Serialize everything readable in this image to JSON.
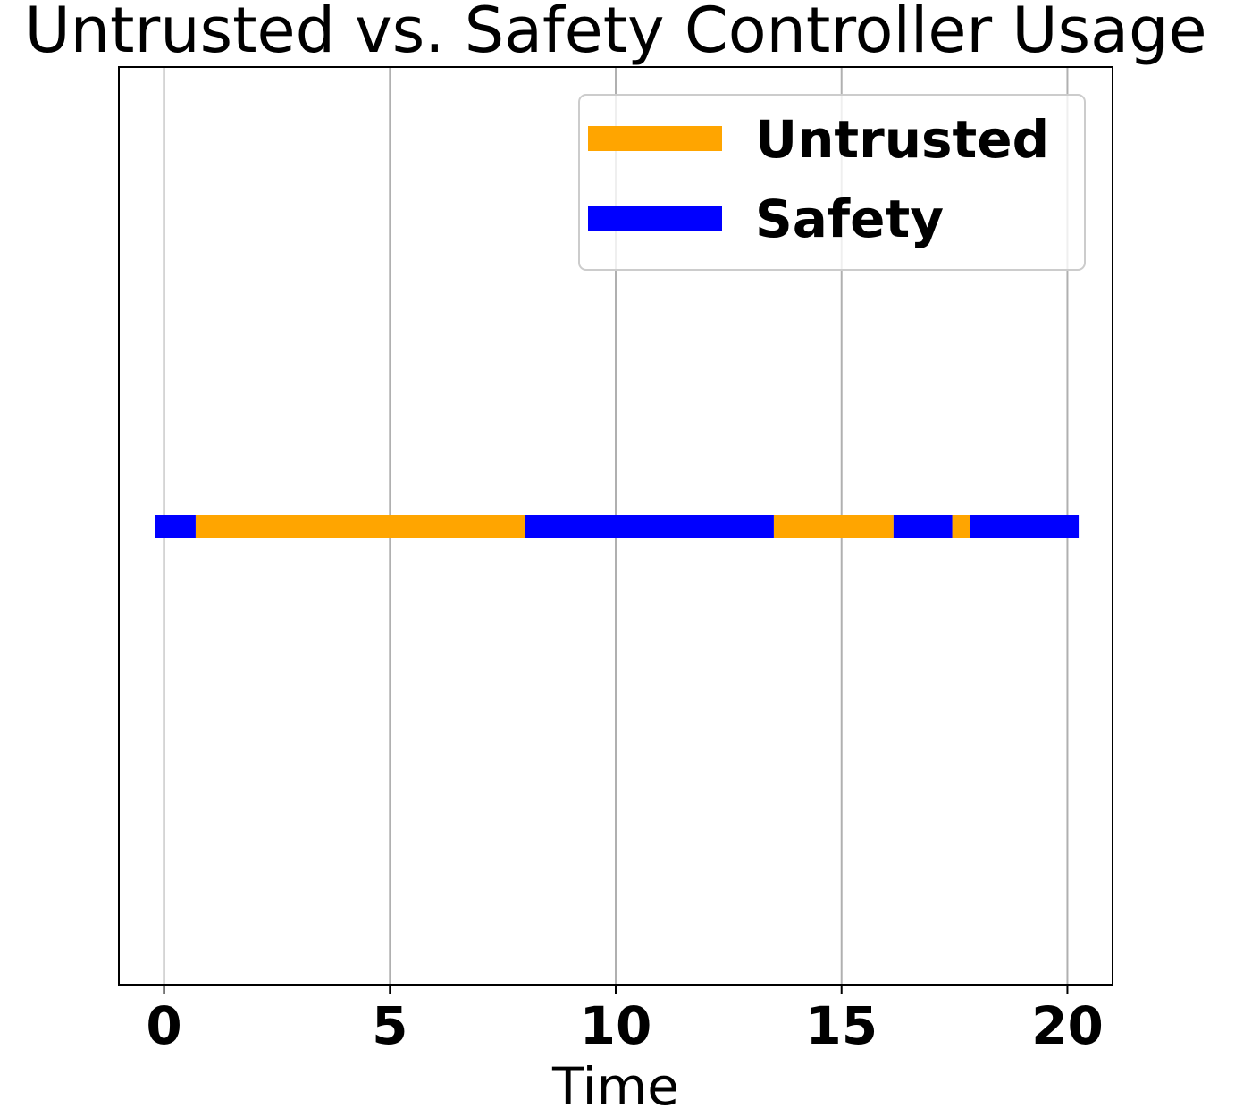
{
  "chart_data": {
    "type": "bar",
    "title": "Untrusted vs. Safety Controller Usage",
    "xlabel": "Time",
    "ylabel": "",
    "xlim": [
      -1,
      21
    ],
    "x_ticks": [
      0,
      5,
      10,
      15,
      20
    ],
    "x_tick_labels": [
      "0",
      "5",
      "10",
      "15",
      "20"
    ],
    "grid": "vertical",
    "legend_position": "top-right",
    "series": [
      {
        "name": "Untrusted",
        "color": "#FFA500",
        "segments": [
          [
            0.7,
            8.0
          ],
          [
            13.5,
            16.15
          ],
          [
            17.45,
            17.85
          ]
        ]
      },
      {
        "name": "Safety",
        "color": "#0000FF",
        "segments": [
          [
            -0.2,
            0.7
          ],
          [
            8.0,
            13.5
          ],
          [
            16.15,
            17.45
          ],
          [
            17.85,
            20.25
          ]
        ]
      }
    ]
  }
}
